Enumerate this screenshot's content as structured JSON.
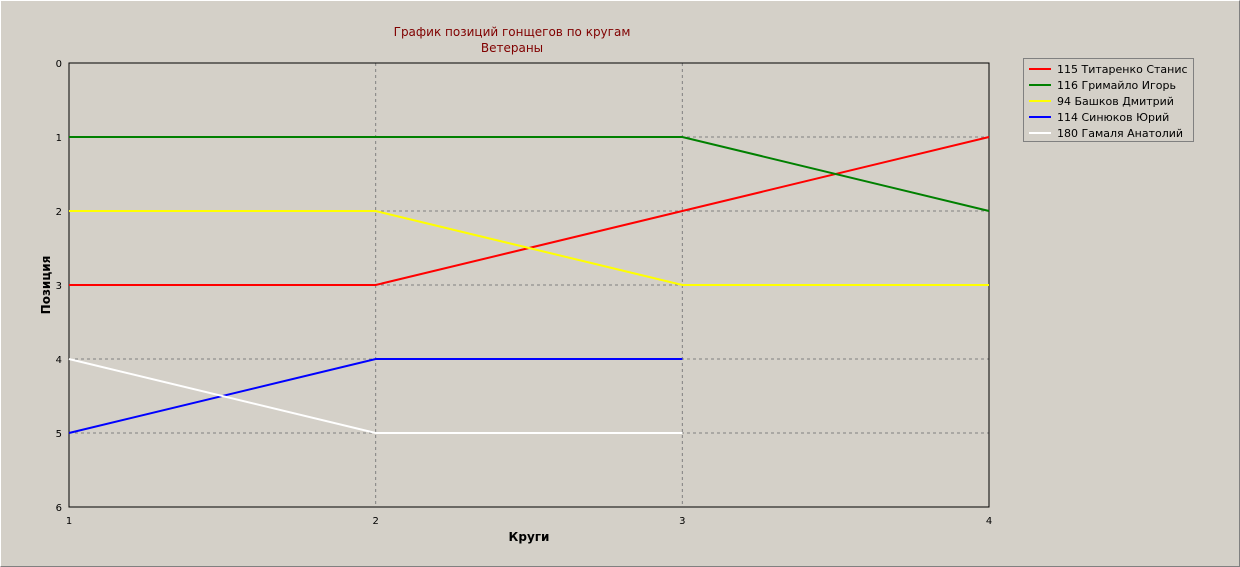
{
  "chart_data": {
    "type": "line",
    "title": "График позиций гонщегов по кругам",
    "subtitle": "Ветераны",
    "xlabel": "Круги",
    "ylabel": "Позиция",
    "x_ticks": [
      1,
      2,
      3,
      4
    ],
    "y_ticks": [
      0,
      1,
      2,
      3,
      4,
      5,
      6
    ],
    "xlim": [
      1,
      4
    ],
    "ylim": [
      0,
      6
    ],
    "y_inverted": true,
    "grid": true,
    "legend_position": "top-right",
    "series": [
      {
        "name": "115 Титаренко Станис",
        "color": "#ff0000",
        "x": [
          1,
          2,
          3,
          4
        ],
        "y": [
          3,
          3,
          2,
          1
        ]
      },
      {
        "name": "116 Гримайло Игорь",
        "color": "#008000",
        "x": [
          1,
          2,
          3,
          4
        ],
        "y": [
          1,
          1,
          1,
          2
        ]
      },
      {
        "name": "94 Башков Дмитрий",
        "color": "#ffff00",
        "x": [
          1,
          2,
          3,
          4
        ],
        "y": [
          2,
          2,
          3,
          3
        ]
      },
      {
        "name": "114 Синюков Юрий",
        "color": "#0000ff",
        "x": [
          1,
          2,
          3
        ],
        "y": [
          5,
          4,
          4
        ]
      },
      {
        "name": "180 Гамаля Анатолий",
        "color": "#ffffff",
        "x": [
          1,
          2,
          3
        ],
        "y": [
          4,
          5,
          5
        ]
      }
    ]
  }
}
